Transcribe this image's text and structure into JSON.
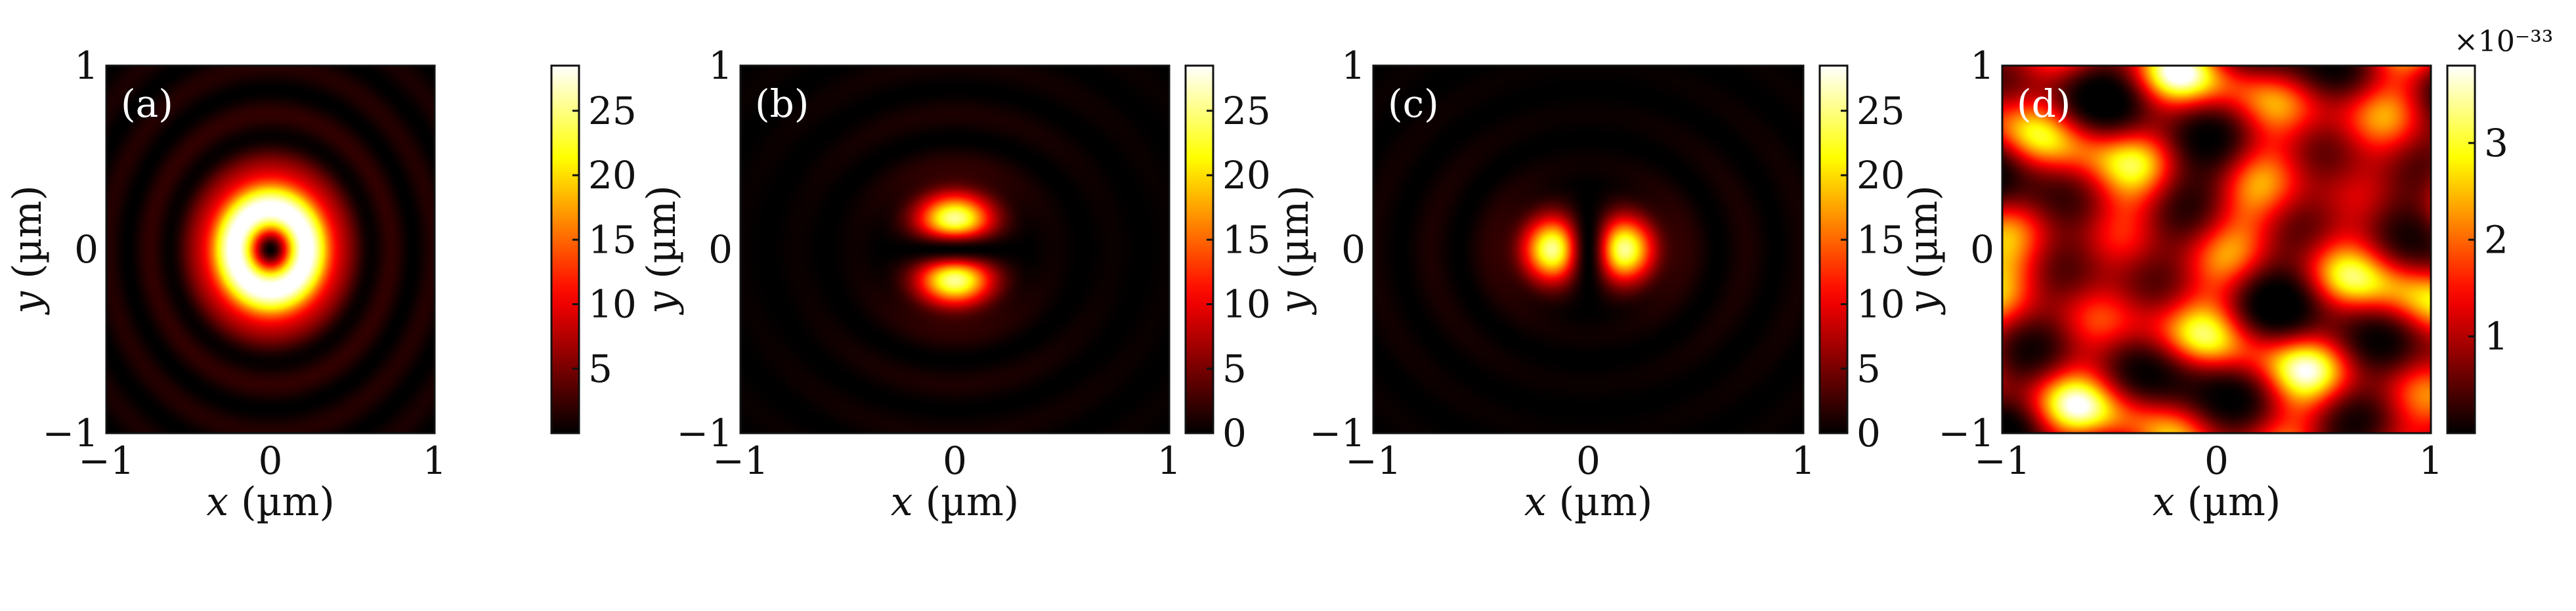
{
  "chart_data": [
    {
      "type": "heatmap",
      "panel_label": "(a)",
      "pattern": "ring",
      "xlabel_var": "x",
      "xlabel_unit": " (µm)",
      "ylabel_var": "y",
      "ylabel_unit": " (µm)",
      "xlim": [
        -1,
        1
      ],
      "ylim": [
        -1,
        1
      ],
      "x_ticks": [
        "−1",
        "0",
        "1"
      ],
      "y_ticks": [
        "−1",
        "0",
        "1"
      ],
      "colorbar": {
        "range": [
          0,
          28.5
        ],
        "ticks": [
          5,
          10,
          15,
          20,
          25
        ],
        "tick_labels": [
          "5",
          "10",
          "15",
          "20",
          "25"
        ],
        "exponent": ""
      },
      "colormap": "hot"
    },
    {
      "type": "heatmap",
      "panel_label": "(b)",
      "pattern": "two-lobes-vertical",
      "xlabel_var": "x",
      "xlabel_unit": " (µm)",
      "ylabel_var": "y",
      "ylabel_unit": " (µm)",
      "xlim": [
        -1,
        1
      ],
      "ylim": [
        -1,
        1
      ],
      "x_ticks": [
        "−1",
        "0",
        "1"
      ],
      "y_ticks": [
        "−1",
        "0",
        "1"
      ],
      "colorbar": {
        "range": [
          0,
          28.5
        ],
        "ticks": [
          0,
          5,
          10,
          15,
          20,
          25
        ],
        "tick_labels": [
          "0",
          "5",
          "10",
          "15",
          "20",
          "25"
        ],
        "exponent": ""
      },
      "colormap": "hot"
    },
    {
      "type": "heatmap",
      "panel_label": "(c)",
      "pattern": "two-lobes-horizontal",
      "xlabel_var": "x",
      "xlabel_unit": " (µm)",
      "ylabel_var": "y",
      "ylabel_unit": " (µm)",
      "xlim": [
        -1,
        1
      ],
      "ylim": [
        -1,
        1
      ],
      "x_ticks": [
        "−1",
        "0",
        "1"
      ],
      "y_ticks": [
        "−1",
        "0",
        "1"
      ],
      "colorbar": {
        "range": [
          0,
          28.5
        ],
        "ticks": [
          0,
          5,
          10,
          15,
          20,
          25
        ],
        "tick_labels": [
          "0",
          "5",
          "10",
          "15",
          "20",
          "25"
        ],
        "exponent": ""
      },
      "colormap": "hot"
    },
    {
      "type": "heatmap",
      "panel_label": "(d)",
      "pattern": "noise",
      "xlabel_var": "x",
      "xlabel_unit": " (µm)",
      "ylabel_var": "y",
      "ylabel_unit": " (µm)",
      "xlim": [
        -1,
        1
      ],
      "ylim": [
        -1,
        1
      ],
      "x_ticks": [
        "−1",
        "0",
        "1"
      ],
      "y_ticks": [
        "−1",
        "0",
        "1"
      ],
      "colorbar": {
        "range": [
          0,
          3.8
        ],
        "ticks": [
          1,
          2,
          3
        ],
        "tick_labels": [
          "1",
          "2",
          "3"
        ],
        "exponent": "×10⁻³³"
      },
      "colormap": "hot"
    }
  ]
}
